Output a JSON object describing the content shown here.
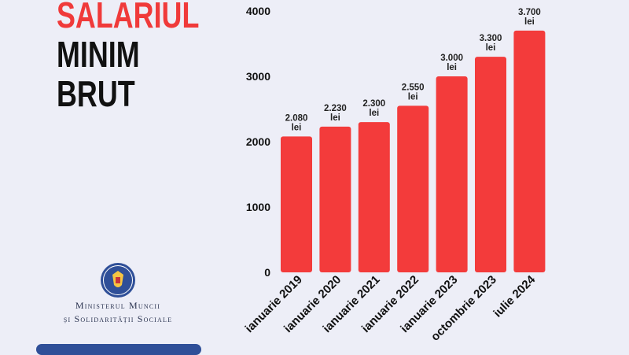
{
  "headline": {
    "line1": "SALARIUL",
    "line2": "MINIM",
    "line3": "BRUT"
  },
  "ministry": {
    "line1": "Ministerul Muncii",
    "line2": "și Solidarității Sociale"
  },
  "colors": {
    "bar": "#f33b3b",
    "headline_accent": "#f03a3a",
    "background": "#edeef7",
    "footer_bar": "#2f4f98"
  },
  "chart_data": {
    "type": "bar",
    "categories": [
      "ianuarie 2019",
      "ianuarie 2020",
      "ianuarie 2021",
      "ianuarie 2022",
      "ianuarie 2023",
      "octombrie 2023",
      "iulie 2024"
    ],
    "values": [
      2080,
      2230,
      2300,
      2550,
      3000,
      3300,
      3700
    ],
    "value_labels": [
      "2.080",
      "2.230",
      "2.300",
      "2.550",
      "3.000",
      "3.300",
      "3.700"
    ],
    "unit_label": "lei",
    "yticks": [
      0,
      1000,
      2000,
      3000,
      4000
    ],
    "ylim": [
      0,
      4000
    ],
    "grid": false,
    "legend": "none"
  }
}
